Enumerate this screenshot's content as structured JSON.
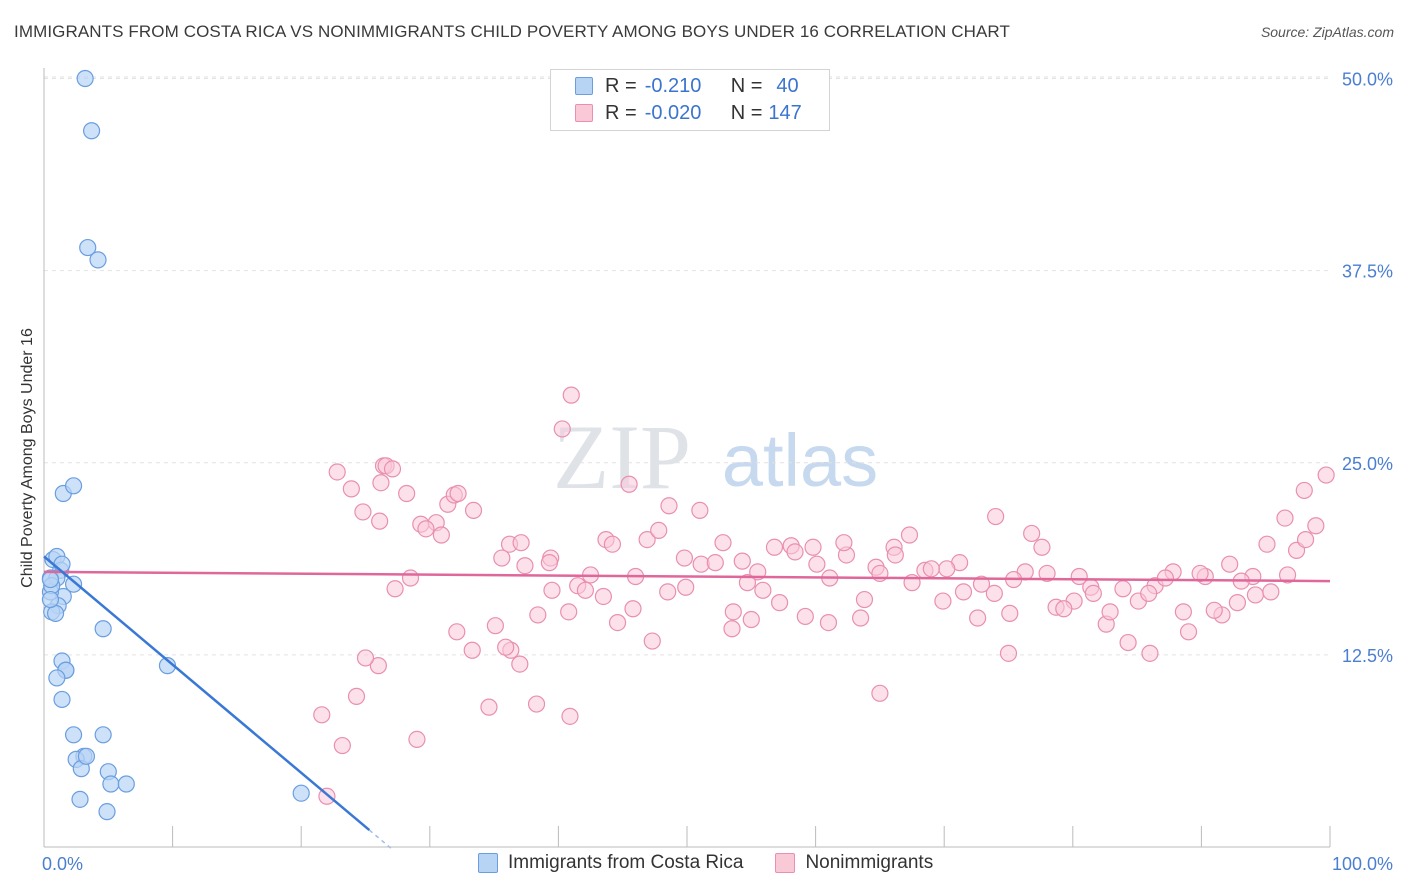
{
  "title": "IMMIGRANTS FROM COSTA RICA VS NONIMMIGRANTS CHILD POVERTY AMONG BOYS UNDER 16 CORRELATION CHART",
  "source": "Source: ZipAtlas.com",
  "watermark": {
    "zip": "ZIP",
    "atlas": "atlas"
  },
  "legend": {
    "rows": [
      {
        "r_label": "R =",
        "r_value": "-0.210",
        "n_label": "N =",
        "n_value": "40"
      },
      {
        "r_label": "R =",
        "r_value": "-0.020",
        "n_label": "N =",
        "n_value": "147"
      }
    ]
  },
  "colors": {
    "blue_fill": "#b8d4f5",
    "blue_stroke": "#6a9ee0",
    "blue_line": "#3a78d6",
    "pink_fill": "#f9c9d8",
    "pink_stroke": "#e98fb0",
    "pink_line": "#e0679a",
    "tick_label": "#4a7fd0"
  },
  "chart_data": {
    "type": "scatter",
    "xlabel": "",
    "ylabel": "Child Poverty Among Boys Under 16",
    "xlim": [
      0,
      100
    ],
    "ylim": [
      0,
      52
    ],
    "x_tick_labels": [
      "0.0%",
      "100.0%"
    ],
    "y_ticks": [
      12.5,
      25.0,
      37.5,
      50.0
    ],
    "y_tick_labels": [
      "12.5%",
      "25.0%",
      "37.5%",
      "50.0%"
    ],
    "grid": true,
    "series": [
      {
        "name": "Immigrants from Costa Rica",
        "x": [
          3.2,
          3.7,
          3.4,
          4.2,
          0.7,
          1.0,
          1.3,
          0.5,
          1.0,
          2.3,
          1.5,
          1.1,
          0.6,
          0.9,
          1.5,
          2.3,
          0.5,
          1.4,
          0.6,
          0.5,
          1.4,
          1.7,
          4.6,
          1.7,
          1.0,
          1.4,
          9.6,
          2.3,
          4.6,
          5.0,
          3.1,
          2.5,
          2.9,
          3.3,
          5.2,
          6.4,
          2.8,
          4.9,
          20.0,
          0.5
        ],
        "y": [
          50.0,
          46.6,
          39.0,
          38.2,
          18.7,
          18.9,
          18.0,
          17.5,
          17.5,
          17.1,
          16.3,
          15.7,
          15.3,
          15.2,
          23.0,
          23.5,
          16.6,
          18.4,
          17.0,
          17.4,
          12.1,
          11.5,
          14.2,
          11.5,
          11.0,
          9.6,
          11.8,
          7.3,
          7.3,
          4.9,
          5.9,
          5.7,
          5.1,
          5.9,
          4.1,
          4.1,
          3.1,
          2.3,
          3.5,
          16.1
        ]
      },
      {
        "name": "Nonimmigrants",
        "x": [
          40.3,
          41.0,
          26.4,
          26.2,
          23.9,
          31.4,
          31.9,
          39.4,
          36.2,
          37.1,
          26.6,
          27.1,
          28.2,
          29.3,
          30.5,
          22.8,
          26.1,
          24.8,
          35.1,
          35.6,
          32.2,
          33.4,
          36.3,
          37.4,
          38.4,
          39.3,
          40.8,
          41.5,
          42.5,
          43.7,
          44.2,
          45.8,
          46.9,
          47.8,
          48.6,
          49.9,
          51.1,
          52.8,
          53.6,
          54.3,
          55.5,
          56.8,
          58.1,
          59.2,
          60.1,
          61.0,
          62.4,
          63.5,
          64.7,
          66.1,
          67.3,
          68.5,
          69.9,
          71.2,
          72.6,
          73.9,
          75.1,
          76.3,
          77.6,
          78.7,
          80.1,
          81.4,
          82.6,
          83.9,
          85.1,
          86.4,
          87.8,
          89.0,
          90.3,
          91.6,
          92.8,
          94.2,
          95.4,
          96.7,
          97.4,
          98.1,
          98.9,
          99.7,
          98.0,
          96.5,
          95.1,
          94.0,
          93.1,
          92.2,
          91.0,
          89.9,
          88.6,
          87.2,
          85.9,
          84.3,
          82.9,
          81.6,
          80.5,
          79.3,
          78.0,
          76.8,
          75.4,
          74.0,
          72.9,
          71.5,
          70.2,
          69.0,
          67.5,
          66.2,
          65.0,
          63.8,
          62.2,
          61.1,
          59.8,
          58.4,
          57.2,
          55.9,
          54.7,
          53.5,
          52.2,
          51.0,
          49.8,
          48.5,
          47.3,
          46.0,
          44.6,
          43.5,
          42.1,
          40.9,
          39.5,
          38.3,
          37.0,
          35.9,
          34.6,
          33.3,
          32.1,
          30.9,
          29.7,
          28.5,
          27.3,
          26.0,
          25.0,
          24.3,
          23.2,
          22.0,
          21.6,
          29.0,
          45.5,
          55.0,
          65.0,
          75.0,
          86.0
        ],
        "y": [
          27.2,
          29.4,
          24.8,
          23.7,
          23.3,
          22.3,
          22.9,
          18.8,
          19.7,
          19.8,
          24.8,
          24.6,
          23.0,
          21.0,
          21.1,
          24.4,
          21.2,
          21.8,
          14.4,
          18.8,
          23.0,
          21.9,
          12.8,
          18.3,
          15.1,
          18.5,
          15.3,
          17.0,
          17.7,
          20.0,
          19.7,
          15.5,
          20.0,
          20.6,
          22.2,
          16.9,
          18.4,
          19.8,
          15.3,
          18.6,
          17.9,
          19.5,
          19.6,
          15.0,
          18.4,
          14.6,
          19.0,
          14.9,
          18.2,
          19.5,
          20.3,
          18.0,
          16.0,
          18.5,
          14.9,
          16.5,
          15.2,
          17.9,
          19.5,
          15.6,
          16.0,
          16.9,
          14.5,
          16.8,
          16.0,
          17.0,
          17.9,
          14.0,
          17.6,
          15.1,
          15.9,
          16.4,
          16.6,
          17.7,
          19.3,
          20.0,
          20.9,
          24.2,
          23.2,
          21.4,
          19.7,
          17.6,
          17.3,
          18.4,
          15.4,
          17.8,
          15.3,
          17.5,
          16.5,
          13.3,
          15.3,
          16.5,
          17.6,
          15.5,
          17.8,
          20.4,
          17.4,
          21.5,
          17.1,
          16.6,
          18.1,
          18.1,
          17.2,
          19.0,
          17.8,
          16.1,
          19.8,
          17.5,
          19.5,
          19.2,
          15.9,
          16.7,
          17.2,
          14.2,
          18.5,
          21.9,
          18.8,
          16.6,
          13.4,
          17.6,
          14.6,
          16.3,
          16.7,
          8.5,
          16.7,
          9.3,
          11.9,
          13.0,
          9.1,
          12.8,
          14.0,
          20.3,
          20.7,
          17.5,
          16.8,
          11.8,
          12.3,
          9.8,
          6.6,
          3.3,
          8.6,
          7.0,
          23.6,
          14.8,
          10.0,
          12.6,
          12.6
        ]
      }
    ],
    "trend_lines": [
      {
        "series": "Immigrants from Costa Rica",
        "x": [
          0,
          25.3
        ],
        "y": [
          18.9,
          1.1
        ]
      },
      {
        "series": "Nonimmigrants",
        "x": [
          0,
          100
        ],
        "y": [
          17.9,
          17.3
        ]
      }
    ]
  },
  "bottom_legend": [
    "Immigrants from Costa Rica",
    "Nonimmigrants"
  ]
}
